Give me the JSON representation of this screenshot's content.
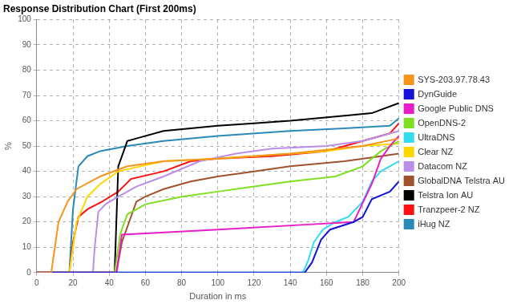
{
  "chart_data": {
    "type": "line",
    "title": "Response Distribution Chart (First 200ms)",
    "x_label": "Duration in ms",
    "y_label": "%",
    "xlim": [
      0,
      200
    ],
    "xticks": [
      0,
      20,
      40,
      60,
      80,
      100,
      120,
      140,
      160,
      180,
      200
    ],
    "ylim": [
      0,
      100
    ],
    "yticks": [
      0,
      10,
      20,
      30,
      40,
      50,
      60,
      70,
      80,
      90,
      100
    ],
    "grid": true,
    "legend": "right",
    "series": [
      {
        "name": "SYS-203.97.78.43",
        "color": "#f7941d",
        "x": [
          0,
          8,
          10,
          12,
          17,
          22,
          35,
          50,
          70,
          100,
          140,
          180,
          200
        ],
        "values": [
          0,
          0,
          10,
          20,
          28,
          33,
          38,
          42,
          44,
          45,
          47,
          50,
          53
        ]
      },
      {
        "name": "DynGuide",
        "color": "#1414d8",
        "x": [
          0,
          148,
          152,
          157,
          162,
          175,
          180,
          185,
          195,
          200
        ],
        "values": [
          0,
          0,
          4,
          13,
          17,
          20,
          22,
          29,
          32,
          36
        ]
      },
      {
        "name": "Google Public DNS",
        "color": "#e81cc8",
        "x": [
          0,
          44,
          47,
          60,
          100,
          150,
          175,
          185,
          190,
          195,
          200
        ],
        "values": [
          0,
          0,
          15,
          15.5,
          17,
          19,
          20,
          35,
          45,
          50,
          54
        ]
      },
      {
        "name": "OpenDNS-2",
        "color": "#7ee020",
        "x": [
          0,
          43,
          46,
          50,
          60,
          80,
          100,
          120,
          140,
          165,
          180,
          190,
          200
        ],
        "values": [
          0,
          0,
          15,
          23,
          27,
          30,
          32,
          34,
          36,
          38,
          42,
          48,
          52
        ]
      },
      {
        "name": "UltraDNS",
        "color": "#33dcee",
        "x": [
          0,
          147,
          150,
          153,
          158,
          165,
          172,
          180,
          185,
          190,
          200
        ],
        "values": [
          0,
          0,
          5,
          12,
          17,
          20,
          22,
          28,
          36,
          40,
          44
        ]
      },
      {
        "name": "Clear NZ",
        "color": "#ffd700",
        "x": [
          0,
          18,
          20,
          22,
          28,
          35,
          45,
          70,
          100,
          120,
          160,
          180,
          200
        ],
        "values": [
          0,
          0,
          10,
          20,
          30,
          35,
          40,
          44,
          45,
          46,
          48,
          50,
          51
        ]
      },
      {
        "name": "Datacom NZ",
        "color": "#b98ee8",
        "x": [
          0,
          31,
          32,
          34,
          38,
          45,
          55,
          70,
          90,
          110,
          130,
          160,
          180,
          200
        ],
        "values": [
          0,
          0,
          10,
          24,
          27,
          30,
          34,
          38,
          44,
          47,
          49,
          50,
          52,
          56
        ]
      },
      {
        "name": "GlobalDNA Telstra AU",
        "color": "#a0522d",
        "x": [
          0,
          44,
          47,
          51,
          55,
          60,
          70,
          85,
          100,
          120,
          140,
          170,
          190,
          200
        ],
        "values": [
          0,
          0,
          12,
          20,
          28,
          30,
          33,
          36,
          38,
          40,
          42,
          44,
          46,
          47
        ]
      },
      {
        "name": "Telstra Ion AU",
        "color": "#000000",
        "x": [
          0,
          43,
          45,
          50,
          55,
          70,
          85,
          100,
          120,
          140,
          170,
          185,
          200
        ],
        "values": [
          0,
          0,
          42,
          52,
          53,
          56,
          57,
          58,
          59,
          60,
          62,
          63,
          67
        ]
      },
      {
        "name": "Tranzpeer-2 NZ",
        "color": "#ff1010",
        "x": [
          0,
          18,
          20,
          23,
          28,
          36,
          45,
          52,
          70,
          85,
          100,
          130,
          160,
          180,
          195,
          200
        ],
        "values": [
          0,
          0,
          12,
          22,
          25,
          28,
          32,
          37,
          40,
          44,
          45,
          46,
          48,
          52,
          55,
          59
        ]
      },
      {
        "name": "iHug NZ",
        "color": "#2a8ab8",
        "x": [
          0,
          18,
          20,
          23,
          28,
          35,
          50,
          70,
          100,
          140,
          170,
          195,
          200
        ],
        "values": [
          0,
          0,
          25,
          42,
          46,
          48,
          50,
          52,
          54,
          56,
          57,
          58,
          61
        ]
      }
    ]
  }
}
